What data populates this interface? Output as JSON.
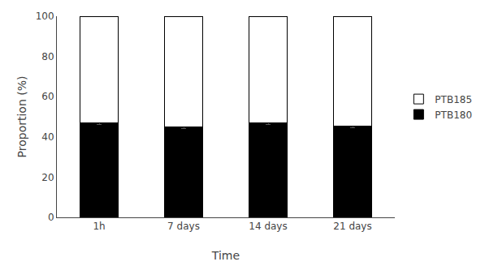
{
  "chart_data": {
    "type": "bar",
    "stacked": true,
    "categories": [
      "1h",
      "7 days",
      "14 days",
      "21 days"
    ],
    "series": [
      {
        "name": "PTB180",
        "color": "#000000",
        "values": [
          47.0,
          44.8,
          46.8,
          45.3
        ],
        "errors": [
          0.8,
          0.8,
          0.7,
          0.8
        ]
      },
      {
        "name": "PTB185",
        "color": "#ffffff",
        "values": [
          53.0,
          55.2,
          53.2,
          54.7
        ]
      }
    ],
    "xlabel": "Time",
    "ylabel": "Proportion (%)",
    "ylim": [
      0,
      100
    ],
    "yticks": [
      0,
      20,
      40,
      60,
      80,
      100
    ],
    "grid": false,
    "legend": "right"
  }
}
